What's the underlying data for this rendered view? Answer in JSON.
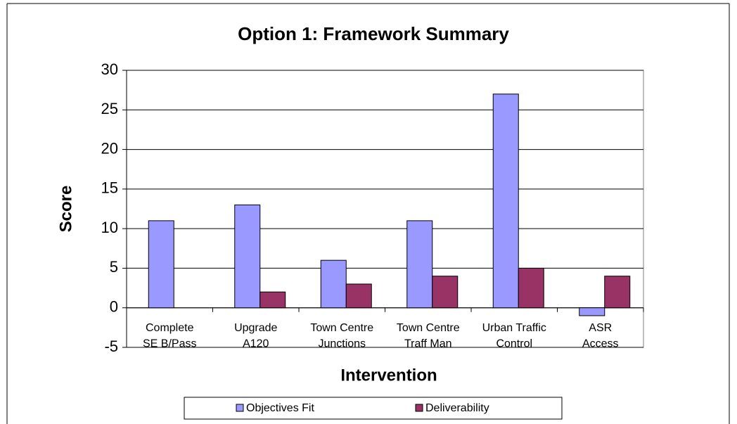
{
  "chart_data": {
    "type": "bar",
    "title": "Option 1: Framework Summary",
    "x_label": "Intervention",
    "y_label": "Score",
    "categories": [
      "Complete\nSE B/Pass",
      "Upgrade\nA120",
      "Town Centre\nJunctions",
      "Town Centre\nTraff Man",
      "Urban Traffic\nControl",
      "ASR\nAccess"
    ],
    "series": [
      {
        "name": "Objectives Fit",
        "color": "#9999ff",
        "values": [
          11,
          13,
          6,
          11,
          27,
          -1
        ]
      },
      {
        "name": "Deliverability",
        "color": "#993366",
        "values": [
          0,
          2,
          3,
          4,
          5,
          4
        ]
      }
    ],
    "ylim": [
      -5,
      30
    ],
    "yticks": [
      -5,
      0,
      5,
      10,
      15,
      20,
      25,
      30
    ],
    "grid": true,
    "legend": "bottom"
  }
}
